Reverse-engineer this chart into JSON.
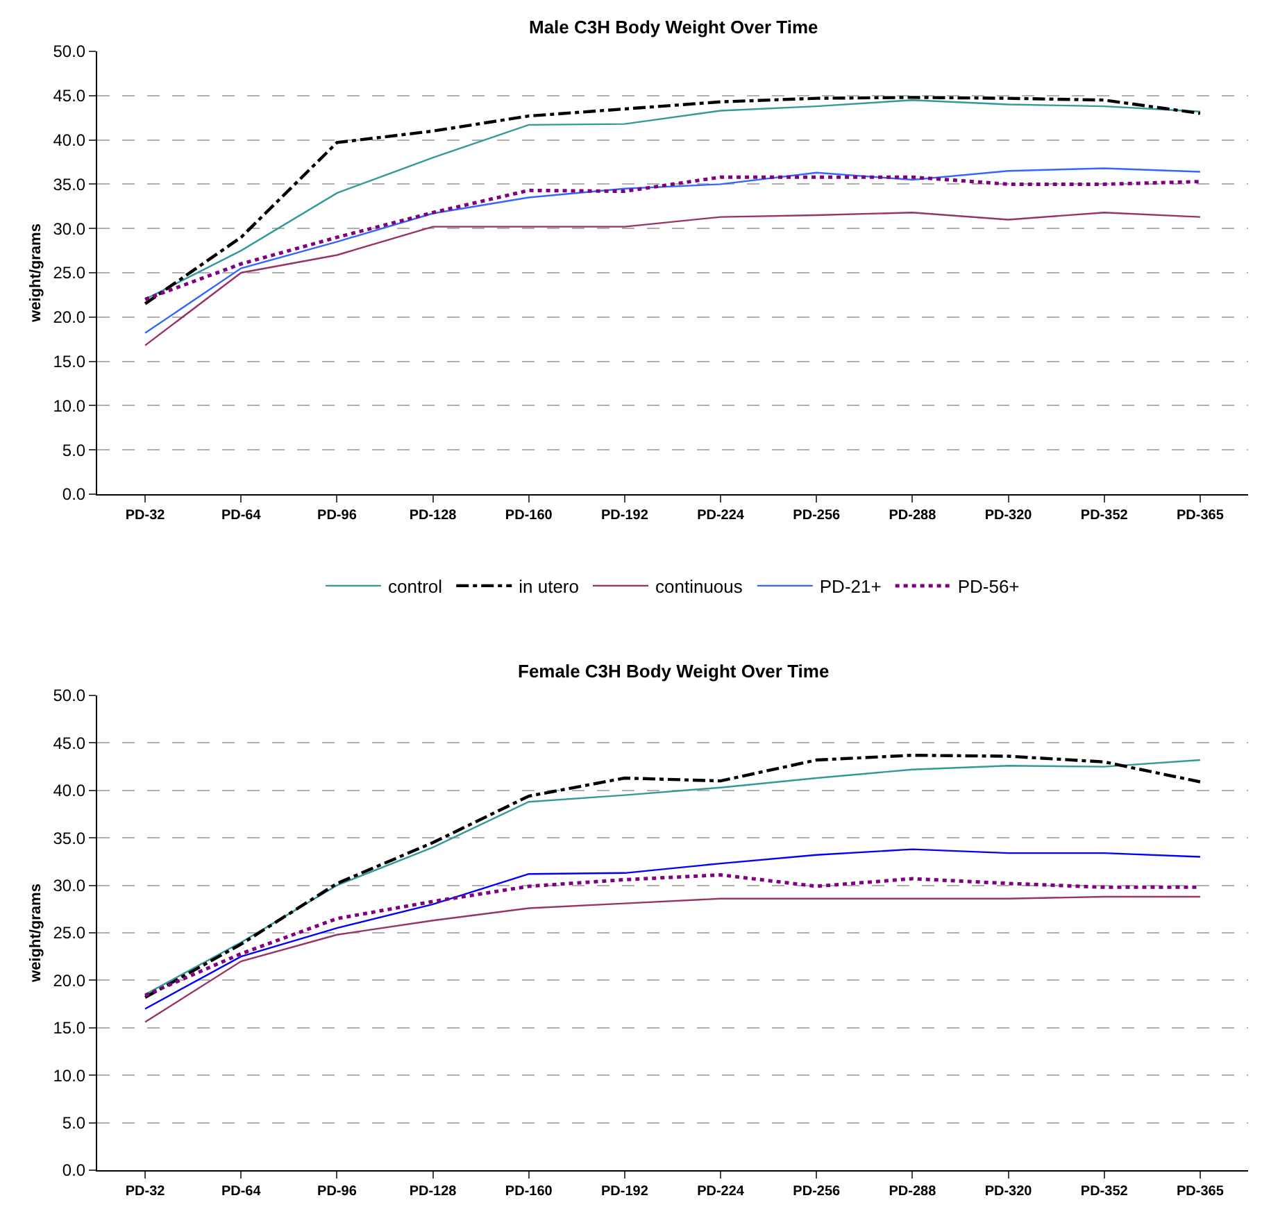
{
  "chart_data": [
    {
      "type": "line",
      "title": "Male C3H Body Weight Over Time",
      "ylabel": "weight/grams",
      "categories": [
        "PD-32",
        "PD-64",
        "PD-96",
        "PD-128",
        "PD-160",
        "PD-192",
        "PD-224",
        "PD-256",
        "PD-288",
        "PD-320",
        "PD-352",
        "PD-365"
      ],
      "ylim": [
        0,
        50
      ],
      "yticks": [
        {
          "value": 0,
          "label": "0.0"
        },
        {
          "value": 5,
          "label": "5.0"
        },
        {
          "value": 10,
          "label": "10.0"
        },
        {
          "value": 15,
          "label": "15.0"
        },
        {
          "value": 20,
          "label": "20.0"
        },
        {
          "value": 25,
          "label": "25.0"
        },
        {
          "value": 30,
          "label": "30.0"
        },
        {
          "value": 35,
          "label": "35.0"
        },
        {
          "value": 40,
          "label": "40.0"
        },
        {
          "value": 45,
          "label": "45.0"
        },
        {
          "value": 50,
          "label": "50.0"
        }
      ],
      "grid": "y",
      "legend": "bottom",
      "marker": "none",
      "series": [
        {
          "name": "control",
          "color": "#339999",
          "line_style": "solid",
          "values": [
            22,
            27.5,
            34,
            38,
            41.7,
            41.8,
            43.3,
            43.8,
            44.5,
            44,
            43.8,
            43.2
          ]
        },
        {
          "name": "in utero",
          "color": "#000000",
          "line_style": "dashed",
          "values": [
            21.5,
            29,
            39.7,
            41,
            42.7,
            43.5,
            44.3,
            44.7,
            44.8,
            44.7,
            44.5,
            43
          ]
        },
        {
          "name": "continuous",
          "color": "#993366",
          "line_style": "solid",
          "values": [
            16.8,
            25,
            27,
            30.2,
            30.2,
            30.2,
            31.3,
            31.5,
            31.8,
            31,
            31.8,
            31.3
          ]
        },
        {
          "name": "PD-21+",
          "color": "#3366ff",
          "line_style": "solid",
          "values": [
            18.2,
            25.5,
            28.5,
            31.7,
            33.5,
            34.5,
            35,
            36.3,
            35.5,
            36.5,
            36.8,
            36.4
          ]
        },
        {
          "name": "PD-56+",
          "color": "#800080",
          "line_style": "dotted",
          "values": [
            22,
            26,
            29,
            31.8,
            34.3,
            34.2,
            35.8,
            35.8,
            35.8,
            35,
            35,
            35.3
          ]
        }
      ]
    },
    {
      "type": "line",
      "title": "Female C3H Body Weight Over Time",
      "ylabel": "weight/grams",
      "categories": [
        "PD-32",
        "PD-64",
        "PD-96",
        "PD-128",
        "PD-160",
        "PD-192",
        "PD-224",
        "PD-256",
        "PD-288",
        "PD-320",
        "PD-352",
        "PD-365"
      ],
      "ylim": [
        0,
        50
      ],
      "yticks": [
        {
          "value": 0,
          "label": "0.0"
        },
        {
          "value": 5,
          "label": "5.0"
        },
        {
          "value": 10,
          "label": "10.0"
        },
        {
          "value": 15,
          "label": "15.0"
        },
        {
          "value": 20,
          "label": "20.0"
        },
        {
          "value": 25,
          "label": "25.0"
        },
        {
          "value": 30,
          "label": "30.0"
        },
        {
          "value": 35,
          "label": "35.0"
        },
        {
          "value": 40,
          "label": "40.0"
        },
        {
          "value": 45,
          "label": "45.0"
        },
        {
          "value": 50,
          "label": "50.0"
        }
      ],
      "grid": "y",
      "legend": false,
      "marker": "none",
      "series": [
        {
          "color": "#339999",
          "line_style": "solid",
          "values": [
            18.5,
            24,
            30,
            34,
            38.8,
            39.5,
            40.3,
            41.3,
            42.2,
            42.6,
            42.5,
            43.2
          ]
        },
        {
          "color": "#000000",
          "line_style": "dashed",
          "values": [
            18.2,
            23.8,
            30.2,
            34.5,
            39.4,
            41.3,
            41,
            43.2,
            43.7,
            43.6,
            43,
            40.9
          ]
        },
        {
          "color": "#993366",
          "line_style": "solid",
          "values": [
            15.6,
            22,
            24.8,
            26.3,
            27.6,
            28.1,
            28.6,
            28.6,
            28.6,
            28.6,
            28.8,
            28.8
          ]
        },
        {
          "color": "#0000ff",
          "line_style": "solid",
          "values": [
            17,
            22.5,
            25.5,
            28,
            31.2,
            31.3,
            32.3,
            33.2,
            33.8,
            33.4,
            33.4,
            33
          ]
        },
        {
          "color": "#800080",
          "line_style": "dotted",
          "values": [
            18.4,
            22.8,
            26.5,
            28.3,
            29.9,
            30.6,
            31.1,
            29.9,
            30.7,
            30.2,
            29.8,
            29.8
          ]
        }
      ]
    }
  ]
}
